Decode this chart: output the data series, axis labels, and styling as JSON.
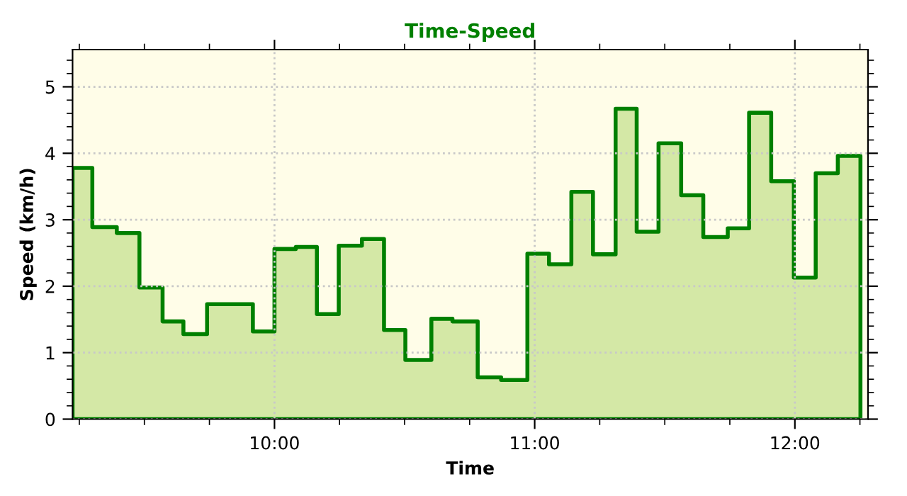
{
  "chart_data": {
    "type": "area",
    "title": "Time-Speed",
    "xlabel": "Time",
    "ylabel": "Speed (km/h)",
    "series": [
      {
        "color": "#008000",
        "x": [
          9.224,
          9.3,
          9.394,
          9.481,
          9.57,
          9.65,
          9.741,
          9.917,
          10.0,
          10.082,
          10.163,
          10.247,
          10.336,
          10.421,
          10.503,
          10.603,
          10.684,
          10.781,
          10.871,
          10.972,
          11.055,
          11.141,
          11.224,
          11.311,
          11.392,
          11.476,
          11.563,
          11.648,
          11.742,
          11.824,
          11.909,
          11.996,
          12.08,
          12.165,
          12.252
        ],
        "values": [
          3.78,
          2.89,
          2.8,
          1.98,
          1.47,
          1.28,
          1.73,
          1.32,
          2.56,
          2.59,
          1.58,
          2.61,
          2.71,
          1.34,
          0.89,
          1.51,
          1.47,
          0.63,
          0.59,
          2.49,
          2.33,
          3.42,
          2.48,
          4.67,
          2.82,
          4.15,
          3.37,
          2.74,
          2.87,
          4.61,
          3.58,
          2.13,
          3.7,
          3.96,
          3.96
        ]
      }
    ],
    "xlim": [
      9.224,
      12.281
    ],
    "ylim": [
      0,
      5.56
    ],
    "xticks": [
      {
        "value": 9.25,
        "label": null
      },
      {
        "value": 9.5,
        "label": null
      },
      {
        "value": 9.75,
        "label": null
      },
      {
        "value": 10,
        "label": "10:00"
      },
      {
        "value": 10.25,
        "label": null
      },
      {
        "value": 10.5,
        "label": null
      },
      {
        "value": 10.75,
        "label": null
      },
      {
        "value": 11,
        "label": "11:00"
      },
      {
        "value": 11.25,
        "label": null
      },
      {
        "value": 11.5,
        "label": null
      },
      {
        "value": 11.75,
        "label": null
      },
      {
        "value": 12,
        "label": "12:00"
      },
      {
        "value": 12.25,
        "label": null
      }
    ],
    "yticks": [
      0,
      {
        "value": 0.2,
        "label": null
      },
      {
        "value": 0.4,
        "label": null
      },
      {
        "value": 0.6,
        "label": null
      },
      {
        "value": 0.8,
        "label": null
      },
      1,
      {
        "value": 1.2,
        "label": null
      },
      {
        "value": 1.4,
        "label": null
      },
      {
        "value": 1.6,
        "label": null
      },
      {
        "value": 1.8,
        "label": null
      },
      2,
      {
        "value": 2.2,
        "label": null
      },
      {
        "value": 2.4,
        "label": null
      },
      {
        "value": 2.6,
        "label": null
      },
      {
        "value": 2.8,
        "label": null
      },
      3,
      {
        "value": 3.2,
        "label": null
      },
      {
        "value": 3.4,
        "label": null
      },
      {
        "value": 3.6,
        "label": null
      },
      {
        "value": 3.8,
        "label": null
      },
      4,
      {
        "value": 4.2,
        "label": null
      },
      {
        "value": 4.4,
        "label": null
      },
      {
        "value": 4.6,
        "label": null
      },
      {
        "value": 4.8,
        "label": null
      },
      5,
      {
        "value": 5.2,
        "label": null
      },
      {
        "value": 5.4,
        "label": null
      }
    ],
    "grid": true,
    "line_style": "solid"
  }
}
